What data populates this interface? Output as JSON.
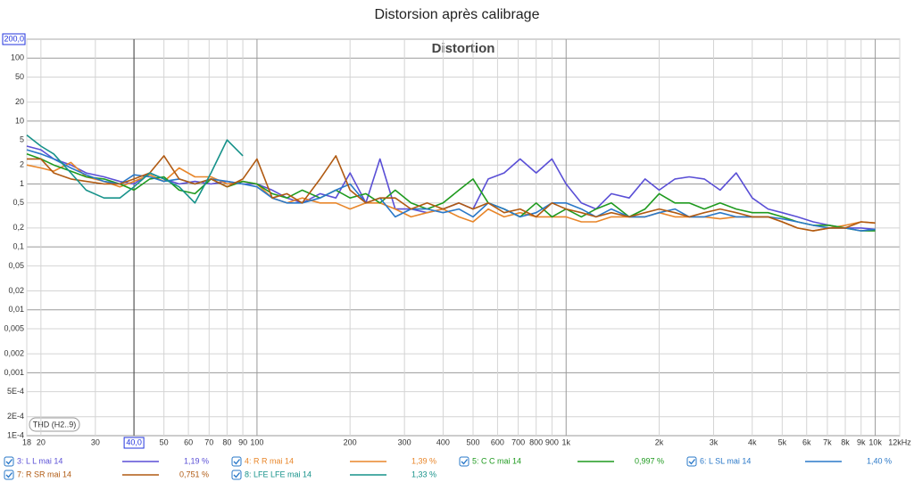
{
  "chart_data": {
    "type": "line",
    "title": "Distorsion après calibrage",
    "subtitle": "Distortion",
    "annotation": "THD (H2..9)",
    "log_x": true,
    "log_y": true,
    "grid": true,
    "xlim": [
      18,
      12000
    ],
    "ylim": [
      0.0001,
      200
    ],
    "cursor_x": {
      "value": 40,
      "label": "40,0"
    },
    "cursor_y": {
      "value": 200,
      "label": "200,0"
    },
    "xticks": [
      18,
      20,
      30,
      50,
      60,
      70,
      80,
      90,
      100,
      200,
      300,
      400,
      500,
      600,
      700,
      800,
      900,
      {
        "value": 1000,
        "label": "1k"
      },
      {
        "value": 2000,
        "label": "2k"
      },
      {
        "value": 3000,
        "label": "3k"
      },
      {
        "value": 4000,
        "label": "4k"
      },
      {
        "value": 5000,
        "label": "5k"
      },
      {
        "value": 6000,
        "label": "6k"
      },
      {
        "value": 7000,
        "label": "7k"
      },
      {
        "value": 8000,
        "label": "8k"
      },
      {
        "value": 9000,
        "label": "9k"
      },
      {
        "value": 10000,
        "label": "10k"
      },
      {
        "value": 12000,
        "label": "12kHz"
      }
    ],
    "yticks": [
      100,
      50,
      20,
      10,
      5,
      2,
      1,
      {
        "value": 0.5,
        "label": "0,5"
      },
      {
        "value": 0.2,
        "label": "0,2"
      },
      {
        "value": 0.1,
        "label": "0,1"
      },
      {
        "value": 0.05,
        "label": "0,05"
      },
      {
        "value": 0.02,
        "label": "0,02"
      },
      {
        "value": 0.01,
        "label": "0,01"
      },
      {
        "value": 0.005,
        "label": "0,005"
      },
      {
        "value": 0.002,
        "label": "0,002"
      },
      {
        "value": 0.001,
        "label": "0,001"
      },
      {
        "value": 0.0005,
        "label": "5E-4"
      },
      {
        "value": 0.0002,
        "label": "2E-4"
      },
      {
        "value": 0.0001,
        "label": "1E-4"
      }
    ],
    "x": [
      18,
      20,
      22,
      25,
      28,
      32,
      36,
      40,
      45,
      50,
      56,
      63,
      71,
      80,
      90,
      100,
      112,
      125,
      140,
      160,
      180,
      200,
      225,
      250,
      280,
      315,
      355,
      400,
      450,
      500,
      560,
      630,
      710,
      800,
      900,
      1000,
      1120,
      1250,
      1400,
      1600,
      1800,
      2000,
      2250,
      2500,
      2800,
      3150,
      3550,
      4000,
      4500,
      5000,
      5600,
      6300,
      7100,
      8000,
      9000,
      10000
    ],
    "series": [
      {
        "name": "3: L L mai 14",
        "color": "#5a4fd6",
        "legend_value": "1,19 %",
        "values": [
          4,
          3.5,
          2.5,
          2,
          1.5,
          1.3,
          1.1,
          1,
          1.5,
          1.2,
          1,
          1.1,
          1,
          1.1,
          1,
          1,
          0.8,
          0.6,
          0.5,
          0.7,
          0.6,
          1.5,
          0.5,
          2.5,
          0.4,
          0.4,
          0.35,
          0.4,
          0.5,
          0.4,
          1.2,
          1.5,
          2.5,
          1.5,
          2.5,
          1,
          0.5,
          0.4,
          0.7,
          0.6,
          1.2,
          0.8,
          1.2,
          1.3,
          1.2,
          0.8,
          1.5,
          0.6,
          0.4,
          0.35,
          0.3,
          0.25,
          0.22,
          0.2,
          0.2,
          0.19
        ]
      },
      {
        "name": "4: R R mai 14",
        "color": "#e8862a",
        "legend_value": "1,39 %",
        "values": [
          2,
          1.8,
          1.6,
          2.2,
          1.3,
          1.1,
          0.9,
          1.1,
          1.4,
          1.1,
          1.8,
          1.3,
          1.3,
          1,
          1.1,
          1,
          0.6,
          0.5,
          0.6,
          0.5,
          0.5,
          0.4,
          0.5,
          0.5,
          0.4,
          0.3,
          0.35,
          0.4,
          0.3,
          0.25,
          0.4,
          0.3,
          0.35,
          0.3,
          0.3,
          0.3,
          0.25,
          0.25,
          0.3,
          0.3,
          0.3,
          0.35,
          0.3,
          0.3,
          0.3,
          0.28,
          0.3,
          0.3,
          0.3,
          0.25,
          0.2,
          0.18,
          0.2,
          0.22,
          0.25,
          0.24
        ]
      },
      {
        "name": "5: C C mai 14",
        "color": "#1f9a1f",
        "legend_value": "0,997 %",
        "values": [
          3,
          2.5,
          2,
          1.6,
          1.3,
          1.2,
          1,
          0.8,
          1.2,
          1.3,
          0.8,
          0.7,
          1.2,
          0.9,
          1.1,
          1,
          0.7,
          0.6,
          0.8,
          0.6,
          0.8,
          0.6,
          0.7,
          0.5,
          0.8,
          0.5,
          0.4,
          0.5,
          0.8,
          1.2,
          0.5,
          0.4,
          0.3,
          0.5,
          0.3,
          0.4,
          0.3,
          0.4,
          0.5,
          0.3,
          0.4,
          0.7,
          0.5,
          0.5,
          0.4,
          0.5,
          0.4,
          0.35,
          0.35,
          0.3,
          0.25,
          0.22,
          0.22,
          0.2,
          0.18,
          0.18
        ]
      },
      {
        "name": "6: L SL mai 14",
        "color": "#2a78c8",
        "legend_value": "1,40 %",
        "values": [
          3.5,
          3,
          2.5,
          1.8,
          1.4,
          1.1,
          1,
          1.4,
          1.3,
          1.1,
          1.2,
          1,
          1.2,
          1.1,
          1,
          0.9,
          0.6,
          0.5,
          0.5,
          0.6,
          0.8,
          1,
          0.5,
          0.6,
          0.3,
          0.4,
          0.4,
          0.35,
          0.4,
          0.3,
          0.5,
          0.4,
          0.3,
          0.35,
          0.5,
          0.5,
          0.4,
          0.3,
          0.4,
          0.3,
          0.3,
          0.35,
          0.4,
          0.3,
          0.3,
          0.35,
          0.3,
          0.3,
          0.3,
          0.28,
          0.25,
          0.22,
          0.2,
          0.2,
          0.18,
          0.19
        ]
      },
      {
        "name": "7: R SR mai 14",
        "color": "#b05a12",
        "legend_value": "0,751 %",
        "values": [
          2.5,
          2.5,
          1.5,
          1.2,
          1.1,
          1,
          1,
          1.2,
          1.5,
          2.8,
          1.2,
          1,
          1.2,
          0.9,
          1.2,
          2.5,
          0.6,
          0.7,
          0.5,
          1.2,
          2.8,
          0.8,
          0.5,
          0.6,
          0.6,
          0.4,
          0.5,
          0.4,
          0.5,
          0.4,
          0.5,
          0.35,
          0.4,
          0.3,
          0.5,
          0.4,
          0.35,
          0.3,
          0.35,
          0.3,
          0.35,
          0.4,
          0.35,
          0.3,
          0.35,
          0.4,
          0.35,
          0.3,
          0.3,
          0.25,
          0.2,
          0.18,
          0.2,
          0.2,
          0.25,
          0.24
        ]
      },
      {
        "name": "8: LFE LFE mai 14",
        "color": "#17928a",
        "legend_value": "1,33 %",
        "values": [
          6,
          4,
          3,
          1.5,
          0.8,
          0.6,
          0.6,
          0.9,
          1.5,
          1.2,
          0.9,
          0.5,
          1.5,
          5,
          2.8,
          null,
          null,
          null,
          null,
          null,
          null,
          null,
          null,
          null,
          null,
          null,
          null,
          null,
          null,
          null,
          null,
          null,
          null,
          null,
          null,
          null,
          null,
          null,
          null,
          null,
          null,
          null,
          null,
          null,
          null,
          null,
          null,
          null,
          null,
          null,
          null,
          null,
          null,
          null,
          null,
          null
        ]
      }
    ]
  }
}
